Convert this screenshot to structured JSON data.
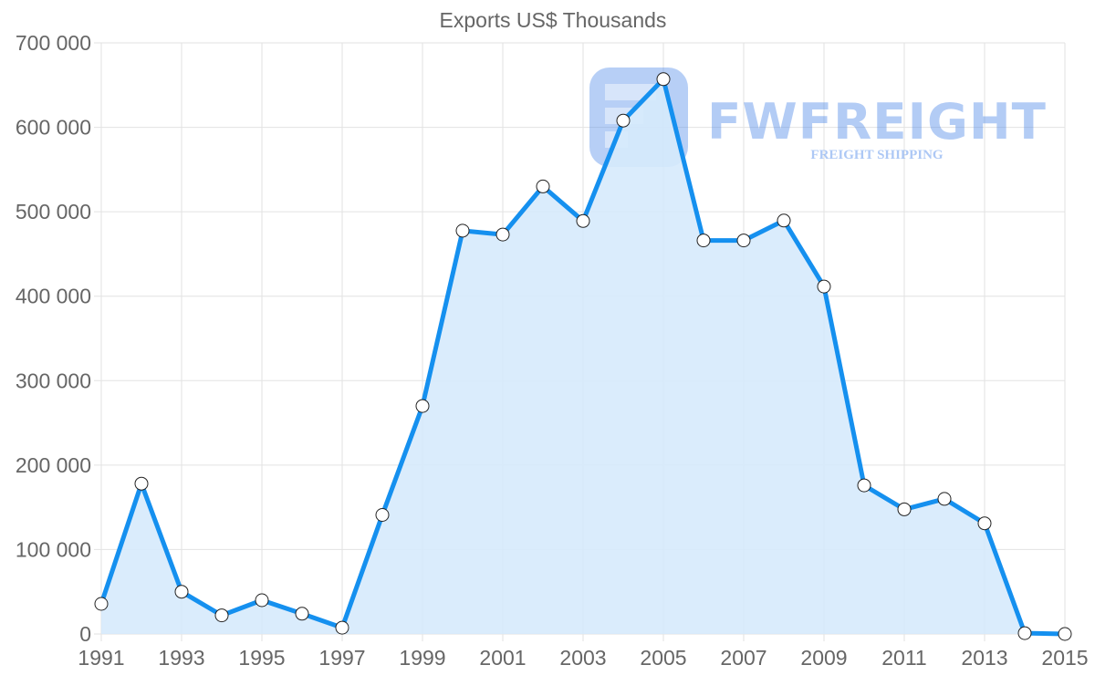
{
  "chart_data": {
    "type": "line",
    "title": "Exports US$ Thousands",
    "xlabel": "",
    "ylabel": "",
    "ylim": [
      0,
      700000
    ],
    "grid": true,
    "legend": "none",
    "fill": true,
    "categories": [
      1991,
      1992,
      1993,
      1994,
      1995,
      1996,
      1997,
      1998,
      1999,
      2000,
      2001,
      2002,
      2003,
      2004,
      2005,
      2006,
      2007,
      2008,
      2009,
      2010,
      2011,
      2012,
      2013,
      2014,
      2015
    ],
    "x_tick_labels": [
      "1991",
      "1993",
      "1995",
      "1997",
      "1999",
      "2001",
      "2003",
      "2005",
      "2007",
      "2009",
      "2011",
      "2013",
      "2015"
    ],
    "y_tick_labels": [
      "0",
      "100 000",
      "200 000",
      "300 000",
      "400 000",
      "500 000",
      "600 000",
      "700 000"
    ],
    "y_ticks": [
      0,
      100000,
      200000,
      300000,
      400000,
      500000,
      600000,
      700000
    ],
    "series": [
      {
        "name": "Exports US$ Thousands",
        "color": "#1590ef",
        "fill_color": "#d6eafc",
        "values": [
          35600,
          178000,
          50000,
          22000,
          40000,
          24000,
          7500,
          141000,
          270000,
          477600,
          473000,
          530000,
          489000,
          608000,
          657000,
          466000,
          466000,
          489600,
          411500,
          176000,
          147600,
          160000,
          131000,
          1000,
          0
        ]
      }
    ]
  },
  "watermark": {
    "brand": "FWFREIGHT",
    "tagline": "FREIGHT SHIPPING",
    "color": "#4a86e8"
  }
}
